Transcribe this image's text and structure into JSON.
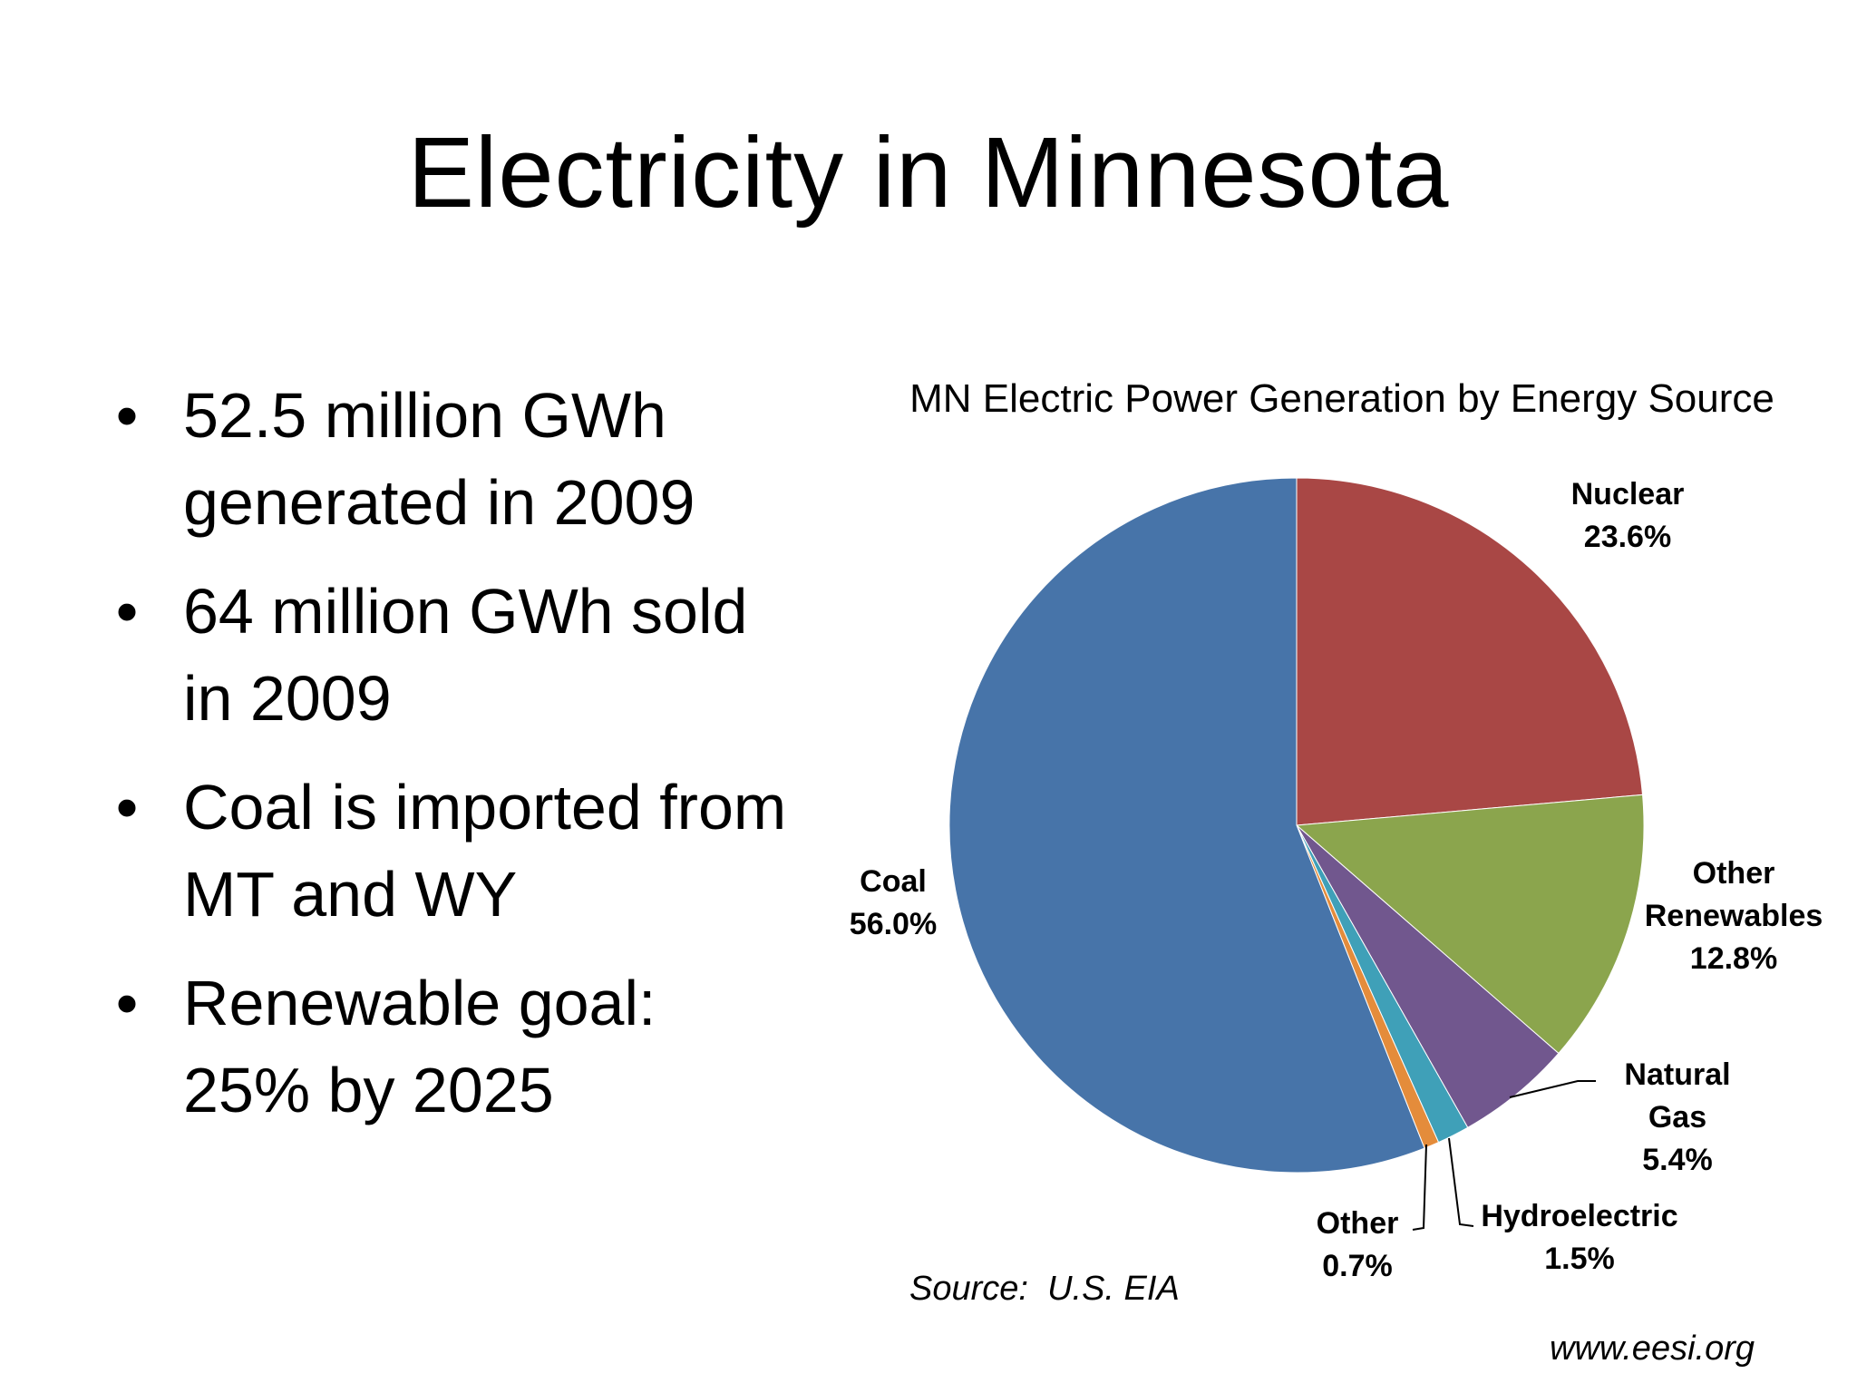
{
  "slide": {
    "title": "Electricity in Minnesota",
    "bullet_glyph": "•",
    "bullets": [
      "52.5 million GWh generated in 2009",
      "64 million GWh sold in 2009",
      "Coal is imported from MT and WY",
      "Renewable goal: 25% by 2025"
    ],
    "source": "Source:  U.S. EIA",
    "website": "www.eesi.org"
  },
  "chart_data": {
    "type": "pie",
    "title": "MN Electric Power Generation by Energy Source",
    "slices": [
      {
        "name": "Nuclear",
        "value": 23.6,
        "value_label": "23.6%",
        "color": "#A94745"
      },
      {
        "name": "Other Renewables",
        "value": 12.8,
        "value_label": "12.8%",
        "color": "#8BA54D"
      },
      {
        "name": "Natural Gas",
        "value": 5.4,
        "value_label": "5.4%",
        "color": "#71578E"
      },
      {
        "name": "Hydroelectric",
        "value": 1.5,
        "value_label": "1.5%",
        "color": "#3FA0B8"
      },
      {
        "name": "Other",
        "value": 0.7,
        "value_label": "0.7%",
        "color": "#E48C3B"
      },
      {
        "name": "Coal",
        "value": 56.0,
        "value_label": "56.0%",
        "color": "#4774A9"
      }
    ],
    "start_angle": "12 o'clock",
    "direction": "clockwise",
    "legend": "none"
  }
}
